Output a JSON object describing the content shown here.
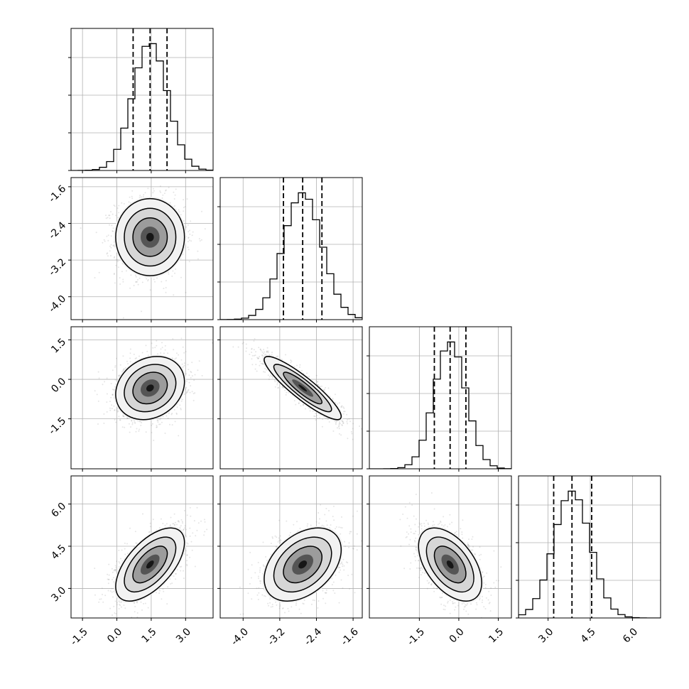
{
  "chart_data": {
    "type": "corner",
    "title": "",
    "params": [
      {
        "axis_ticks": [
          "-1.5",
          "0.0",
          "1.5",
          "3.0"
        ],
        "range": [
          -2.0,
          4.2
        ],
        "mean": 1.45,
        "sd": 0.75,
        "quantiles": [
          0.71,
          1.45,
          2.19
        ]
      },
      {
        "axis_ticks": [
          "-4.0",
          "-3.2",
          "-2.4",
          "-1.6"
        ],
        "range": [
          -4.5,
          -1.4
        ],
        "mean": -2.7,
        "sd": 0.42,
        "quantiles": [
          -3.12,
          -2.7,
          -2.28
        ]
      },
      {
        "axis_ticks": [
          "-1.5",
          "0.0",
          "1.5"
        ],
        "range": [
          -3.4,
          2.0
        ],
        "mean": -0.33,
        "sd": 0.6,
        "quantiles": [
          -0.93,
          -0.33,
          0.27
        ]
      },
      {
        "axis_ticks": [
          "3.0",
          "4.5",
          "6.0"
        ],
        "range": [
          1.95,
          7.0
        ],
        "mean": 3.85,
        "sd": 0.65,
        "quantiles": [
          3.2,
          3.85,
          4.55
        ]
      }
    ],
    "correlations": [
      [
        1.0,
        0.0,
        0.2,
        0.6
      ],
      [
        0.0,
        1.0,
        -0.9,
        0.4
      ],
      [
        0.2,
        -0.9,
        1.0,
        -0.5
      ],
      [
        0.6,
        0.4,
        -0.5,
        1.0
      ]
    ],
    "contour_levels": "1, 1.5, 2 sigma",
    "quantile_lines": "dashed",
    "grid": true
  }
}
